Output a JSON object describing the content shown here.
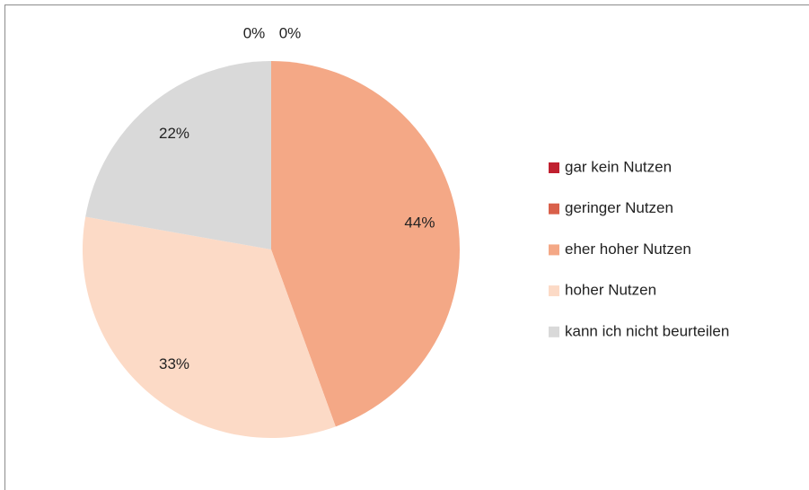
{
  "chart_data": {
    "type": "pie",
    "categories": [
      "gar kein Nutzen",
      "geringer Nutzen",
      "eher hoher Nutzen",
      "hoher Nutzen",
      "kann ich nicht beurteilen"
    ],
    "values": [
      0,
      0,
      44,
      33,
      22
    ],
    "value_labels": [
      "0%",
      "0%",
      "44%",
      "33%",
      "22%"
    ],
    "colors": [
      "#c0202f",
      "#d9604a",
      "#f4a886",
      "#fcdac6",
      "#d9d9d9"
    ],
    "legend": "right"
  }
}
